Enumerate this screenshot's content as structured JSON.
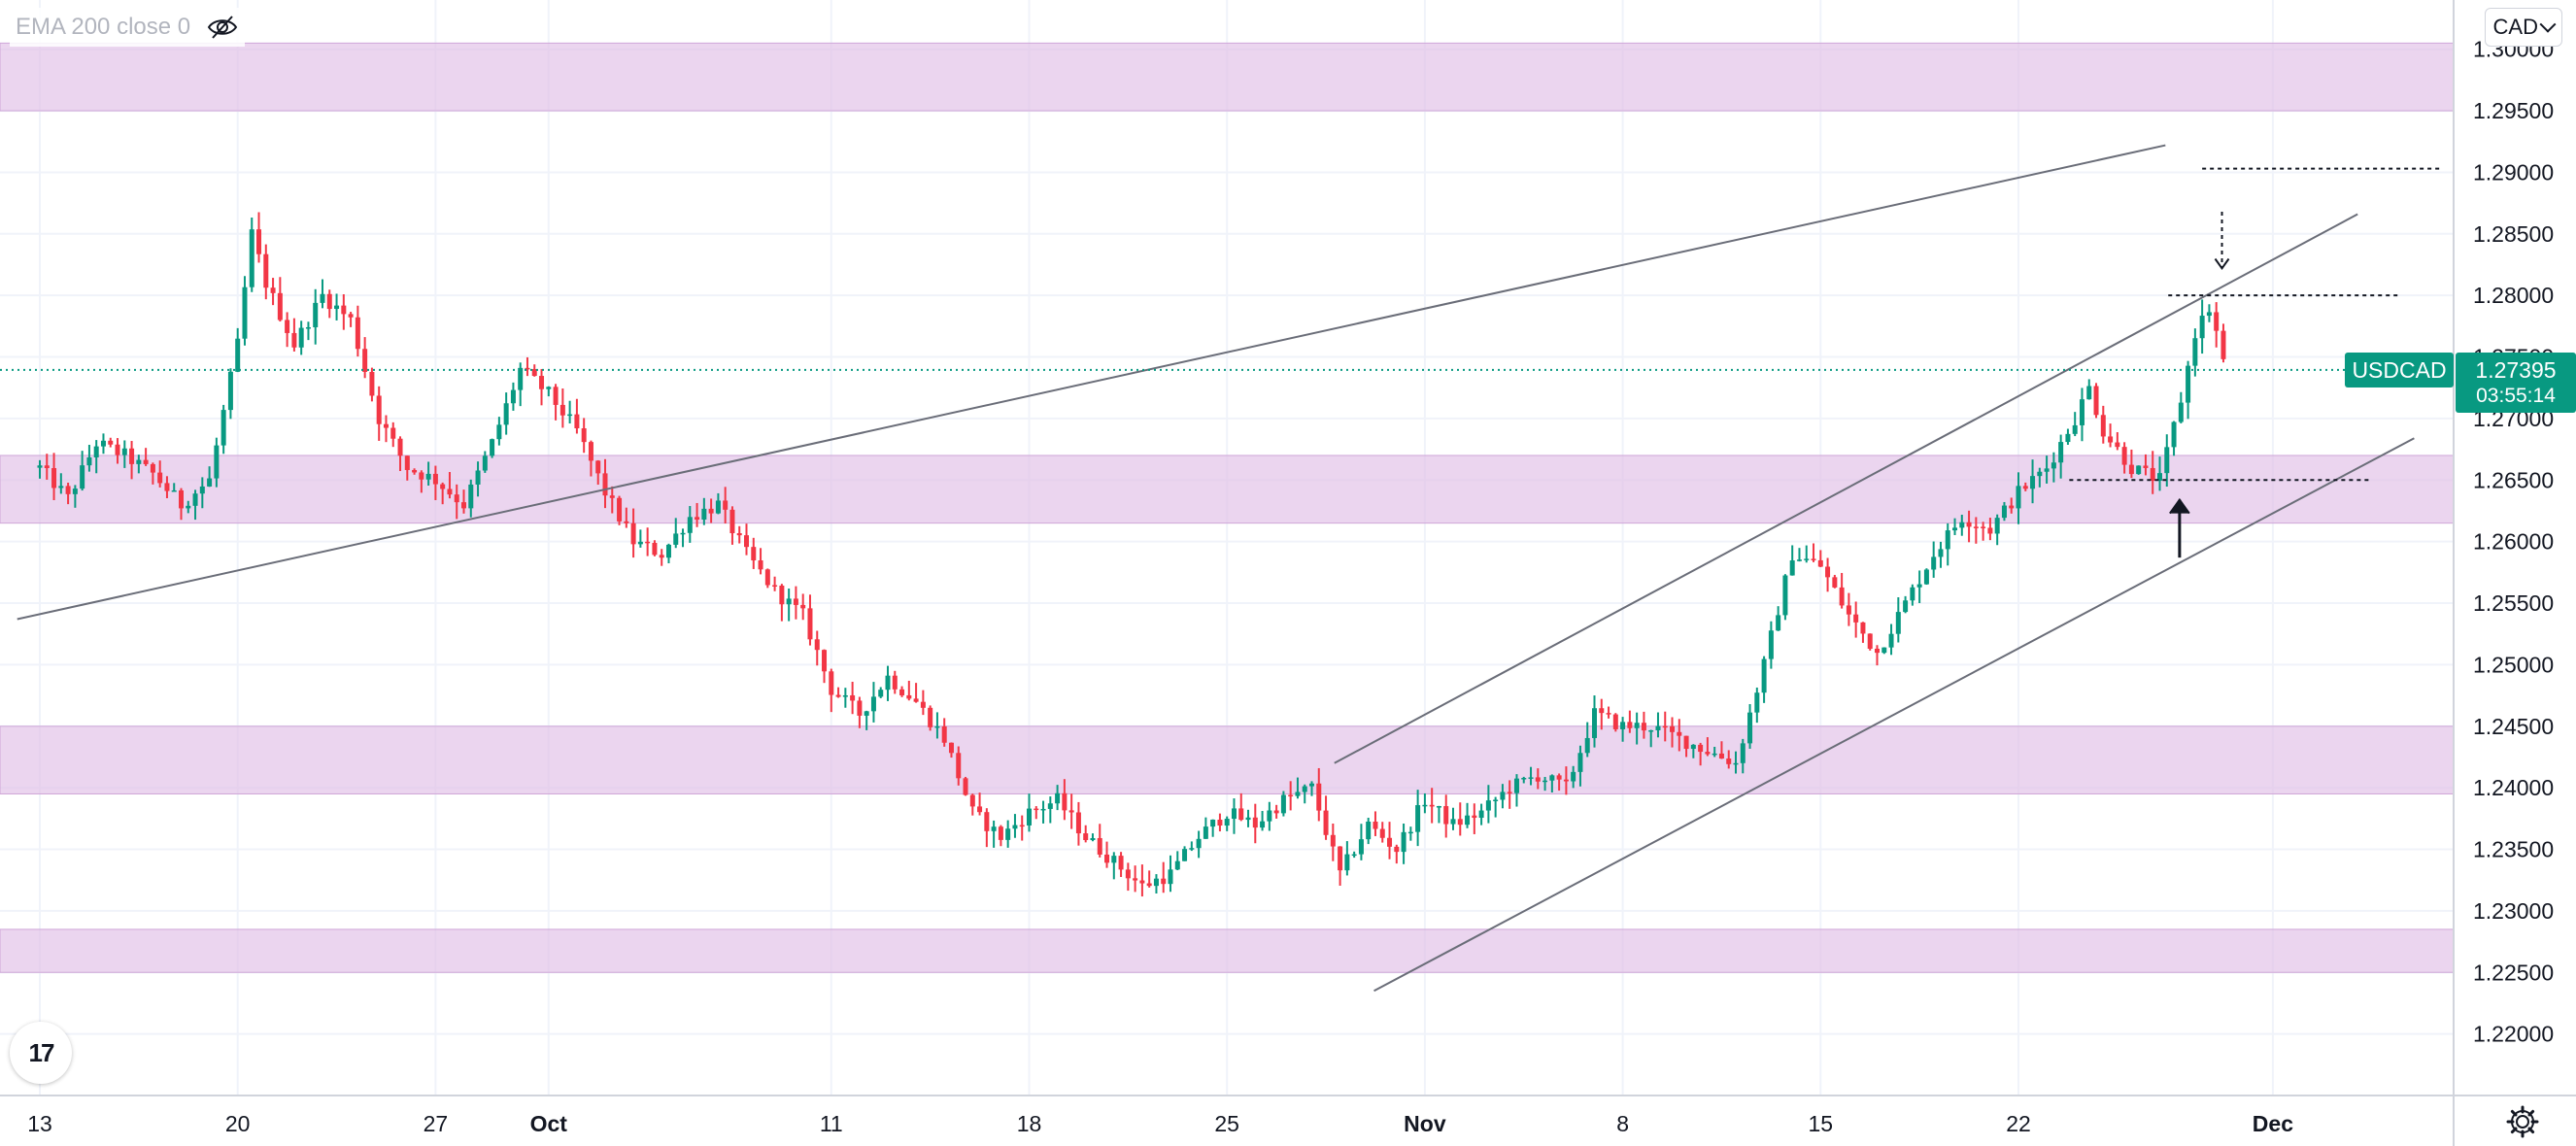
{
  "legend": {
    "indicator_label": "EMA 200 close 0",
    "eye_icon": "eye-off-icon"
  },
  "currency_selector": {
    "label": "CAD"
  },
  "symbol": {
    "name": "USDCAD",
    "price": "1.27395",
    "countdown": "03:55:14"
  },
  "logo": {
    "text": "17",
    "icon": "tradingview-logo-icon"
  },
  "settings": {
    "icon": "gear-icon"
  },
  "colors": {
    "up": "#089981",
    "down": "#f23645",
    "zone": "#e1bee7",
    "current_price": "#089981"
  },
  "chart_data": {
    "type": "candlestick",
    "symbol": "USDCAD",
    "grid": true,
    "ylim": [
      1.215,
      1.304
    ],
    "y_ticks": [
      "1.30000",
      "1.29500",
      "1.29000",
      "1.28500",
      "1.28000",
      "1.27500",
      "1.27000",
      "1.26500",
      "1.26000",
      "1.25500",
      "1.25000",
      "1.24500",
      "1.24000",
      "1.23500",
      "1.23000",
      "1.22500",
      "1.22000"
    ],
    "x_ticks": [
      {
        "label": "13",
        "day": 0
      },
      {
        "label": "20",
        "day": 7
      },
      {
        "label": "27",
        "day": 14
      },
      {
        "label": "Oct",
        "day": 18
      },
      {
        "label": "11",
        "day": 28
      },
      {
        "label": "18",
        "day": 35
      },
      {
        "label": "25",
        "day": 42
      },
      {
        "label": "Nov",
        "day": 49
      },
      {
        "label": "8",
        "day": 56
      },
      {
        "label": "15",
        "day": 63
      },
      {
        "label": "22",
        "day": 70
      },
      {
        "label": "Dec",
        "day": 79
      }
    ],
    "support_resistance_zones": [
      {
        "low": 1.295,
        "high": 1.3005
      },
      {
        "low": 1.2615,
        "high": 1.267
      },
      {
        "low": 1.2395,
        "high": 1.245
      },
      {
        "low": 1.225,
        "high": 1.2285
      }
    ],
    "trendlines": [
      {
        "start": [
          -0.8,
          1.2537
        ],
        "end": [
          75.2,
          1.2922
        ]
      },
      {
        "start": [
          45.8,
          1.242
        ],
        "end": [
          82.0,
          1.2866
        ]
      },
      {
        "start": [
          47.2,
          1.2235
        ],
        "end": [
          84.0,
          1.2684
        ]
      }
    ],
    "levels": [
      {
        "start": [
          76.5,
          1.2903
        ],
        "end": [
          85.0,
          1.2903
        ]
      },
      {
        "start": [
          75.3,
          1.28
        ],
        "end": [
          83.5,
          1.28
        ]
      },
      {
        "start": [
          71.8,
          1.265
        ],
        "end": [
          82.5,
          1.265
        ]
      }
    ],
    "arrows": [
      {
        "x": 77.2,
        "from": 1.2868,
        "to": 1.2822,
        "direction": "down"
      },
      {
        "x": 75.7,
        "from": 1.2587,
        "to": 1.2634,
        "direction": "up"
      }
    ],
    "current_price": 1.27395,
    "anchors": [
      [
        0,
        1.266
      ],
      [
        1,
        1.2635
      ],
      [
        2,
        1.268
      ],
      [
        3,
        1.267
      ],
      [
        4,
        1.2655
      ],
      [
        5,
        1.263
      ],
      [
        6,
        1.265
      ],
      [
        7,
        1.276
      ],
      [
        7.5,
        1.285
      ],
      [
        8,
        1.281
      ],
      [
        9,
        1.276
      ],
      [
        10,
        1.28
      ],
      [
        11,
        1.278
      ],
      [
        12,
        1.27
      ],
      [
        13,
        1.266
      ],
      [
        14,
        1.265
      ],
      [
        15,
        1.263
      ],
      [
        16,
        1.268
      ],
      [
        17,
        1.274
      ],
      [
        18,
        1.272
      ],
      [
        19,
        1.269
      ],
      [
        20,
        1.264
      ],
      [
        21,
        1.26
      ],
      [
        22,
        1.259
      ],
      [
        23,
        1.262
      ],
      [
        24,
        1.263
      ],
      [
        25,
        1.259
      ],
      [
        26,
        1.256
      ],
      [
        27,
        1.254
      ],
      [
        28,
        1.248
      ],
      [
        29,
        1.246
      ],
      [
        30,
        1.249
      ],
      [
        31,
        1.247
      ],
      [
        32,
        1.244
      ],
      [
        33,
        1.238
      ],
      [
        34,
        1.236
      ],
      [
        35,
        1.238
      ],
      [
        36,
        1.239
      ],
      [
        37,
        1.236
      ],
      [
        38,
        1.234
      ],
      [
        39,
        1.232
      ],
      [
        40,
        1.233
      ],
      [
        41,
        1.236
      ],
      [
        42,
        1.238
      ],
      [
        43,
        1.237
      ],
      [
        44,
        1.239
      ],
      [
        45,
        1.24
      ],
      [
        46,
        1.233
      ],
      [
        47,
        1.237
      ],
      [
        48,
        1.235
      ],
      [
        49,
        1.239
      ],
      [
        50,
        1.237
      ],
      [
        51,
        1.238
      ],
      [
        52,
        1.24
      ],
      [
        53,
        1.241
      ],
      [
        54,
        1.24
      ],
      [
        55,
        1.246
      ],
      [
        56,
        1.245
      ],
      [
        57,
        1.245
      ],
      [
        58,
        1.244
      ],
      [
        59,
        1.243
      ],
      [
        60,
        1.242
      ],
      [
        61,
        1.25
      ],
      [
        62,
        1.259
      ],
      [
        63,
        1.258
      ],
      [
        64,
        1.254
      ],
      [
        65,
        1.251
      ],
      [
        66,
        1.255
      ],
      [
        67,
        1.259
      ],
      [
        68,
        1.262
      ],
      [
        69,
        1.261
      ],
      [
        70,
        1.264
      ],
      [
        71,
        1.266
      ],
      [
        72,
        1.27
      ],
      [
        72.5,
        1.2725
      ],
      [
        73,
        1.269
      ],
      [
        74,
        1.266
      ],
      [
        75,
        1.265
      ],
      [
        75.8,
        1.272
      ],
      [
        76.3,
        1.2775
      ],
      [
        76.8,
        1.279
      ],
      [
        77.3,
        1.27395
      ]
    ]
  }
}
